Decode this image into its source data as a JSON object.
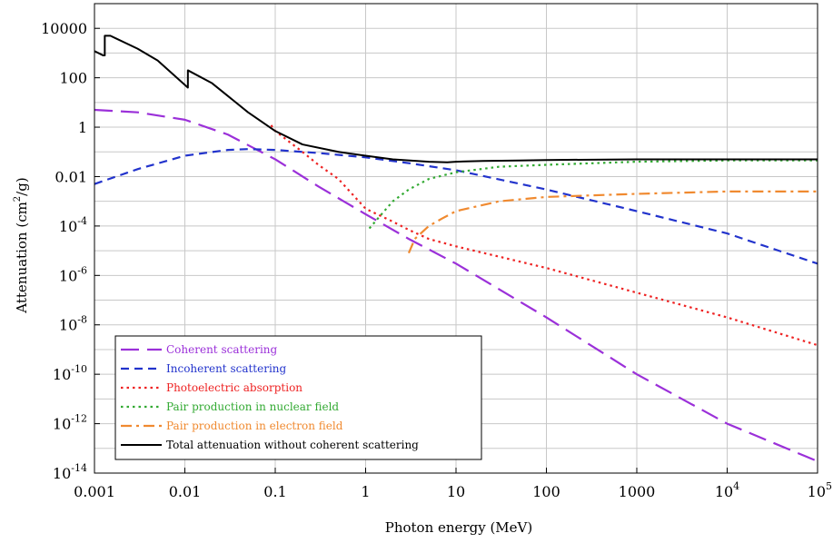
{
  "chart_data": {
    "type": "line",
    "title": "",
    "xlabel": "Photon energy (MeV)",
    "ylabel_prefix": "Attenuation (cm",
    "ylabel_sup": "2",
    "ylabel_suffix": "/g)",
    "xscale": "log",
    "yscale": "log",
    "xlim": [
      0.001,
      100000
    ],
    "ylim": [
      1e-14,
      100000
    ],
    "grid": true,
    "legend_position": "bottom-left",
    "x_ticks": [
      {
        "value": 0.001,
        "base": "0.001",
        "sup": ""
      },
      {
        "value": 0.01,
        "base": "0.01",
        "sup": ""
      },
      {
        "value": 0.1,
        "base": "0.1",
        "sup": ""
      },
      {
        "value": 1,
        "base": "1",
        "sup": ""
      },
      {
        "value": 10,
        "base": "10",
        "sup": ""
      },
      {
        "value": 100,
        "base": "100",
        "sup": ""
      },
      {
        "value": 1000,
        "base": "1000",
        "sup": ""
      },
      {
        "value": 10000,
        "base": "10",
        "sup": "4"
      },
      {
        "value": 100000,
        "base": "10",
        "sup": "5"
      }
    ],
    "y_ticks": [
      {
        "value": 10000,
        "base": "10000",
        "sup": ""
      },
      {
        "value": 100,
        "base": "100",
        "sup": ""
      },
      {
        "value": 1,
        "base": "1",
        "sup": ""
      },
      {
        "value": 0.01,
        "base": "0.01",
        "sup": ""
      },
      {
        "value": 0.0001,
        "base": "10",
        "sup": "-4"
      },
      {
        "value": 1e-06,
        "base": "10",
        "sup": "-6"
      },
      {
        "value": 1e-08,
        "base": "10",
        "sup": "-8"
      },
      {
        "value": 1e-10,
        "base": "10",
        "sup": "-10"
      },
      {
        "value": 1e-12,
        "base": "10",
        "sup": "-12"
      },
      {
        "value": 1e-14,
        "base": "10",
        "sup": "-14"
      }
    ],
    "series": [
      {
        "name": "Coherent scattering",
        "color": "#9b30d9",
        "dash": "long-dash",
        "x": [
          0.001,
          0.003,
          0.01,
          0.03,
          0.1,
          0.3,
          1,
          3,
          10,
          100,
          1000,
          10000,
          100000
        ],
        "y": [
          5,
          4,
          2,
          0.5,
          0.05,
          0.004,
          0.0003,
          3e-05,
          3e-06,
          2e-08,
          1e-10,
          1e-12,
          3e-14
        ]
      },
      {
        "name": "Incoherent scattering",
        "color": "#2233cc",
        "dash": "dash",
        "x": [
          0.001,
          0.003,
          0.01,
          0.03,
          0.05,
          0.1,
          0.3,
          1,
          3,
          10,
          100,
          1000,
          10000,
          100000
        ],
        "y": [
          0.005,
          0.02,
          0.07,
          0.12,
          0.13,
          0.12,
          0.09,
          0.06,
          0.035,
          0.018,
          0.003,
          0.0004,
          5e-05,
          3e-06
        ]
      },
      {
        "name": "Photoelectric absorption",
        "color": "#ee2222",
        "dash": "dot",
        "x": [
          0.09,
          0.1,
          0.2,
          0.3,
          0.5,
          1,
          2,
          3,
          5,
          10,
          100,
          1000,
          10000,
          100000
        ],
        "y": [
          1.2,
          0.7,
          0.1,
          0.03,
          0.008,
          0.0005,
          0.00015,
          7e-05,
          3e-05,
          1.5e-05,
          2e-06,
          2e-07,
          2e-08,
          1.5e-09
        ]
      },
      {
        "name": "Pair production in nuclear field",
        "color": "#33aa33",
        "dash": "dot",
        "x": [
          1.1,
          1.5,
          2,
          3,
          5,
          10,
          30,
          100,
          1000,
          10000,
          100000
        ],
        "y": [
          8e-05,
          0.0003,
          0.001,
          0.003,
          0.008,
          0.015,
          0.025,
          0.03,
          0.04,
          0.045,
          0.045
        ]
      },
      {
        "name": "Pair production in electron field",
        "color": "#f08a30",
        "dash": "dash-dot",
        "x": [
          3,
          3.5,
          5,
          7,
          10,
          30,
          100,
          1000,
          10000,
          100000
        ],
        "y": [
          8e-06,
          3e-05,
          0.0001,
          0.0002,
          0.0004,
          0.001,
          0.0015,
          0.002,
          0.0025,
          0.0025
        ]
      },
      {
        "name": "Total attenuation without coherent scattering",
        "color": "#000000",
        "dash": "solid",
        "x": [
          0.001,
          0.00125,
          0.0013,
          0.0013,
          0.0015,
          0.003,
          0.005,
          0.0108,
          0.0108,
          0.02,
          0.05,
          0.1,
          0.2,
          0.5,
          1,
          2,
          5,
          8,
          10,
          20,
          50,
          100,
          1000,
          10000,
          100000
        ],
        "y": [
          1200,
          800,
          800,
          5000,
          5000,
          1500,
          500,
          40,
          200,
          60,
          4,
          0.7,
          0.2,
          0.1,
          0.07,
          0.05,
          0.04,
          0.038,
          0.04,
          0.043,
          0.045,
          0.047,
          0.05,
          0.05,
          0.05
        ]
      }
    ]
  }
}
